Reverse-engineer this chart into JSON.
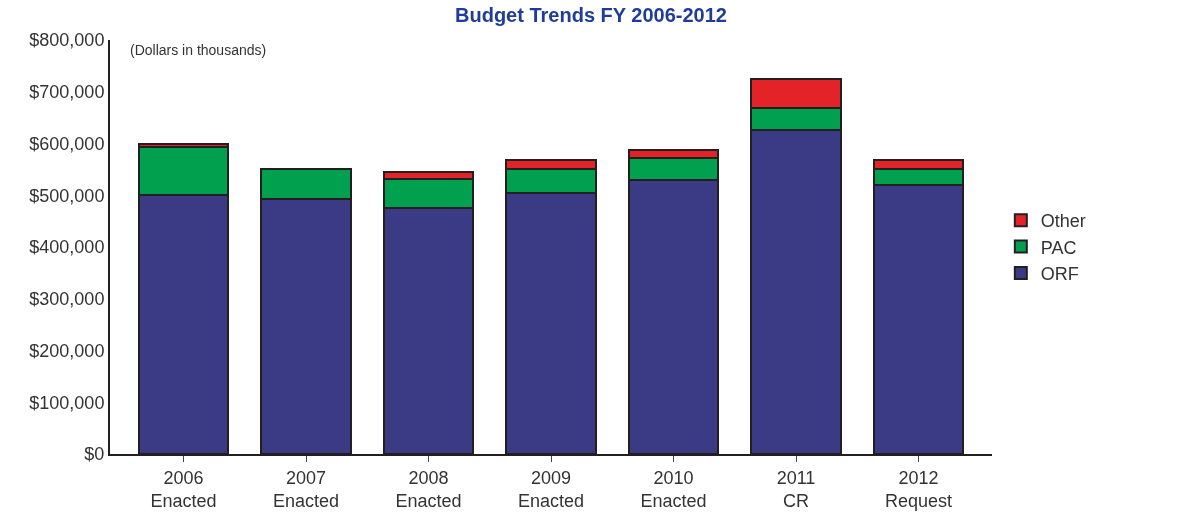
{
  "chart_data": {
    "type": "bar",
    "stacked": true,
    "title": "Budget Trends FY 2006-2012",
    "annotations": [
      "(Dollars in thousands)"
    ],
    "categories": [
      "2006\nEnacted",
      "2007\nEnacted",
      "2008\nEnacted",
      "2009\nEnacted",
      "2010\nEnacted",
      "2011\nCR",
      "2012\nRequest"
    ],
    "series": [
      {
        "name": "ORF",
        "color": "#3b3a85",
        "values": [
          501000,
          492000,
          476000,
          505000,
          530000,
          626000,
          519000
        ]
      },
      {
        "name": "PAC",
        "color": "#00a04f",
        "values": [
          93000,
          58000,
          56000,
          45000,
          42000,
          42000,
          31000
        ]
      },
      {
        "name": "Other",
        "color": "#e42328",
        "values": [
          6000,
          null,
          13000,
          18000,
          16000,
          56000,
          18000
        ]
      }
    ],
    "ylim": [
      0,
      800000
    ],
    "yticks": [
      {
        "value": 0,
        "label": "$0"
      },
      {
        "value": 100000,
        "label": "$100,000"
      },
      {
        "value": 200000,
        "label": "$200,000"
      },
      {
        "value": 300000,
        "label": "$300,000"
      },
      {
        "value": 400000,
        "label": "$400,000"
      },
      {
        "value": 500000,
        "label": "$500,000"
      },
      {
        "value": 600000,
        "label": "$600,000"
      },
      {
        "value": 700000,
        "label": "$700,000"
      },
      {
        "value": 800000,
        "label": "$800,000"
      }
    ],
    "legend": "right"
  }
}
